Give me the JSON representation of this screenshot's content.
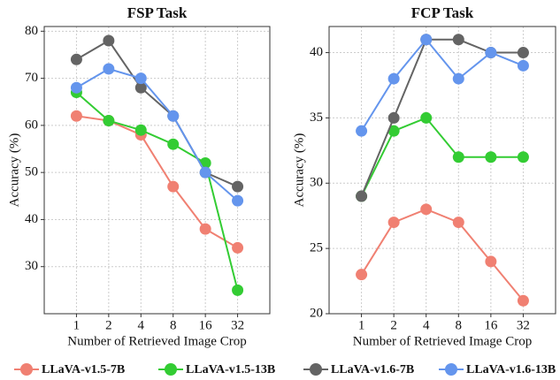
{
  "legend": [
    {
      "name": "LLaVA-v1.5-7B",
      "color": "#f08072"
    },
    {
      "name": "LLaVA-v1.5-13B",
      "color": "#33cc33"
    },
    {
      "name": "LLaVA-v1.6-7B",
      "color": "#646464"
    },
    {
      "name": "LLaVA-v1.6-13B",
      "color": "#6495ed"
    }
  ],
  "chart_data": [
    {
      "type": "line",
      "title": "FSP Task",
      "x_label": "Number of Retrieved Image Crop",
      "y_label": "Accuracy (%)",
      "categories": [
        "1",
        "2",
        "4",
        "8",
        "16",
        "32"
      ],
      "ylim": [
        20,
        81
      ],
      "yticks": [
        30,
        40,
        50,
        60,
        70,
        80
      ],
      "grid": true,
      "series": [
        {
          "values": [
            62,
            61,
            58,
            47,
            38,
            34
          ]
        },
        {
          "values": [
            67,
            61,
            59,
            56,
            52,
            25
          ]
        },
        {
          "values": [
            74,
            78,
            68,
            62,
            50,
            47
          ]
        },
        {
          "values": [
            68,
            72,
            70,
            62,
            50,
            44
          ]
        }
      ]
    },
    {
      "type": "line",
      "title": "FCP Task",
      "x_label": "Number of Retrieved Image Crop",
      "y_label": "Accuracy (%)",
      "categories": [
        "1",
        "2",
        "4",
        "8",
        "16",
        "32"
      ],
      "ylim": [
        20,
        42
      ],
      "yticks": [
        20,
        25,
        30,
        35,
        40
      ],
      "grid": true,
      "series": [
        {
          "values": [
            23,
            27,
            28,
            27,
            24,
            21
          ]
        },
        {
          "values": [
            29,
            34,
            35,
            32,
            32,
            32
          ]
        },
        {
          "values": [
            29,
            35,
            41,
            41,
            40,
            40
          ]
        },
        {
          "values": [
            34,
            38,
            41,
            38,
            40,
            39
          ]
        }
      ]
    }
  ]
}
